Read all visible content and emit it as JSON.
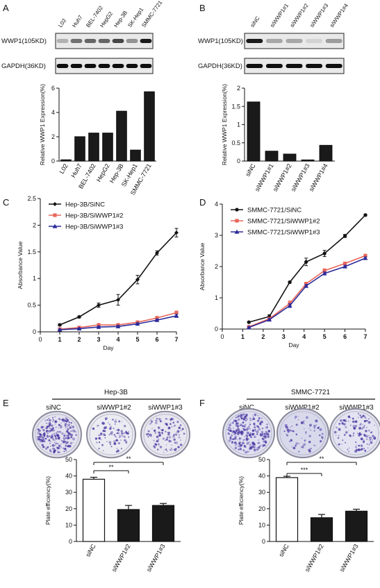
{
  "panels": {
    "A": {
      "letter": "A",
      "lanes": [
        "L02",
        "Huh7",
        "BEL-7402",
        "HepG2",
        "Hep-3B",
        "SK-Hep1",
        "SMMC-7721"
      ],
      "blots": [
        "WWP1(105KD)",
        "GAPDH(36KD)"
      ],
      "band_intensity": {
        "WWP1": [
          0.25,
          0.55,
          0.6,
          0.6,
          0.75,
          0.4,
          0.95
        ],
        "GAPDH": [
          1,
          1,
          1,
          1,
          1,
          1,
          1
        ]
      }
    },
    "B": {
      "letter": "B",
      "lanes": [
        "siNC",
        "siWWP1#1",
        "siWWP1#2",
        "siWWP1#3",
        "siWWP1#4"
      ],
      "blots": [
        "WWP1(105KD)",
        "GAPDH(36KD)"
      ],
      "band_intensity": {
        "WWP1": [
          0.95,
          0.3,
          0.3,
          0.1,
          0.35
        ],
        "GAPDH": [
          1,
          1,
          1,
          1,
          1
        ]
      }
    },
    "C": {
      "letter": "C"
    },
    "D": {
      "letter": "D"
    },
    "E": {
      "letter": "E",
      "group_title": "Hep-3B",
      "conditions": [
        "siNC",
        "siWWP1#2",
        "siWWP1#3"
      ]
    },
    "F": {
      "letter": "F",
      "group_title": "SMMC-7721",
      "conditions": [
        "siNC",
        "siWWP1#2",
        "siWWP1#3"
      ]
    }
  },
  "chart_data": [
    {
      "id": "A",
      "type": "bar",
      "categories": [
        "L02",
        "Huh7",
        "BEL-7402",
        "HepG2",
        "Hep-3B",
        "SK-Hep1",
        "SMMC-7721"
      ],
      "values": [
        0.1,
        2.0,
        2.3,
        2.3,
        4.1,
        0.9,
        5.7
      ],
      "ylabel": "Relative WWP1 Expression(%)",
      "ylim": [
        0,
        6
      ],
      "yticks": [
        0,
        2,
        4,
        6
      ],
      "colors": {
        "bar": "#1a1a1a"
      }
    },
    {
      "id": "B",
      "type": "bar",
      "categories": [
        "siNC",
        "siWWP1#1",
        "siWWP1#2",
        "siWWP1#3",
        "siWWP1#4"
      ],
      "values": [
        1.62,
        0.27,
        0.19,
        0.03,
        0.43
      ],
      "ylabel": "Relative WWP1 Expression(%)",
      "ylim": [
        0,
        2.0
      ],
      "yticks": [
        0,
        0.5,
        1.0,
        1.5,
        2.0
      ],
      "colors": {
        "bar": "#1a1a1a"
      }
    },
    {
      "id": "C",
      "type": "line",
      "x": [
        1,
        2,
        3,
        4,
        5,
        6,
        7
      ],
      "xlabel": "Day",
      "ylabel": "Absorbance Value",
      "xlim": [
        0,
        7
      ],
      "ylim": [
        0,
        2.5
      ],
      "xticks": [
        0,
        1,
        2,
        3,
        4,
        5,
        6,
        7
      ],
      "yticks": [
        0,
        0.5,
        1,
        1.5,
        2,
        2.5
      ],
      "series": [
        {
          "name": "Hep-3B/SiNC",
          "values": [
            0.13,
            0.28,
            0.5,
            0.6,
            0.98,
            1.48,
            1.86
          ],
          "errors": [
            0.02,
            0.02,
            0.04,
            0.1,
            0.08,
            0.04,
            0.08
          ],
          "color": "#111111",
          "marker": "diamond"
        },
        {
          "name": "Hep-3B/SiWWP1#2",
          "values": [
            0.05,
            0.08,
            0.13,
            0.13,
            0.18,
            0.26,
            0.36
          ],
          "errors": [
            0.01,
            0.01,
            0.02,
            0.02,
            0.02,
            0.03,
            0.03
          ],
          "color": "#e8665a",
          "marker": "square"
        },
        {
          "name": "Hep-3B/SiWWP1#3",
          "values": [
            0.04,
            0.06,
            0.09,
            0.1,
            0.15,
            0.22,
            0.3
          ],
          "errors": [
            0.01,
            0.01,
            0.02,
            0.02,
            0.02,
            0.02,
            0.03
          ],
          "color": "#2a2a9a",
          "marker": "triangle"
        }
      ],
      "legend": "top-left"
    },
    {
      "id": "D",
      "type": "line",
      "x": [
        1.3,
        2.3,
        3.3,
        4.1,
        5,
        6,
        7
      ],
      "xlabel": "Day",
      "ylabel": "Absorbance Value",
      "xlim": [
        0,
        7
      ],
      "ylim": [
        0,
        4
      ],
      "xticks": [
        0,
        1,
        2,
        3,
        4,
        5,
        6,
        7
      ],
      "yticks": [
        0,
        1,
        2,
        3,
        4
      ],
      "series": [
        {
          "name": "SMMC-7721/SiNC",
          "values": [
            0.22,
            0.4,
            1.5,
            2.15,
            2.42,
            2.98,
            3.65
          ],
          "errors": [
            0.02,
            0.06,
            0.03,
            0.12,
            0.1,
            0.05,
            0.03
          ],
          "color": "#111111",
          "marker": "circle"
        },
        {
          "name": "SMMC-7721/SiWWP1#2",
          "values": [
            0.07,
            0.33,
            0.82,
            1.45,
            1.87,
            2.1,
            2.35
          ],
          "errors": [
            0.02,
            0.04,
            0.08,
            0.05,
            0.06,
            0.04,
            0.04
          ],
          "color": "#e8665a",
          "marker": "square"
        },
        {
          "name": "SMMC-7721/SiWWP1#3",
          "values": [
            0.05,
            0.3,
            0.75,
            1.38,
            1.78,
            2.0,
            2.27
          ],
          "errors": [
            0.02,
            0.04,
            0.06,
            0.05,
            0.05,
            0.04,
            0.04
          ],
          "color": "#2a2a9a",
          "marker": "triangle"
        }
      ],
      "legend": "top-left"
    },
    {
      "id": "E",
      "type": "bar",
      "categories": [
        "siNC",
        "siWWP1#2",
        "siWWP1#3"
      ],
      "values": [
        38,
        19.5,
        22
      ],
      "errors": [
        1.2,
        2.5,
        1.2
      ],
      "fills": [
        "#ffffff",
        "#1a1a1a",
        "#1a1a1a"
      ],
      "ylabel": "Plate efficiency(%)",
      "ylim": [
        0,
        50
      ],
      "yticks": [
        0,
        10,
        20,
        30,
        40,
        50
      ],
      "significance": [
        {
          "from": 0,
          "to": 1,
          "label": "**"
        },
        {
          "from": 0,
          "to": 2,
          "label": "**"
        }
      ]
    },
    {
      "id": "F",
      "type": "bar",
      "categories": [
        "siNC",
        "siWWP1#2",
        "siWWP1#3"
      ],
      "values": [
        39,
        14.5,
        18.5
      ],
      "errors": [
        0.8,
        2.0,
        1.2
      ],
      "fills": [
        "#ffffff",
        "#1a1a1a",
        "#1a1a1a"
      ],
      "ylabel": "Plate efficiency(%)",
      "ylim": [
        0,
        50
      ],
      "yticks": [
        0,
        10,
        20,
        30,
        40,
        50
      ],
      "significance": [
        {
          "from": 0,
          "to": 1,
          "label": "***"
        },
        {
          "from": 0,
          "to": 2,
          "label": "**"
        }
      ]
    }
  ]
}
